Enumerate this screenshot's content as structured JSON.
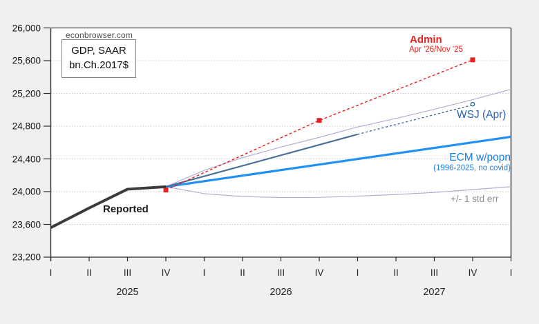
{
  "site": "econbrowser.com",
  "legend_box": {
    "line1": "GDP, SAAR",
    "line2": "bn.Ch.2017$"
  },
  "annotations": {
    "admin_label": "Admin",
    "admin_sub": "Apr '26/Nov '25",
    "wsj_label": "WSJ (Apr)",
    "ecm_label": "ECM w/popn",
    "ecm_sub": "(1996-2025, no covid)",
    "stderr_label": "+/- 1 std err",
    "reported_label": "Reported"
  },
  "colors": {
    "background": "#f0f0f1",
    "plot_background": "#ffffff",
    "frame": "#4a4a4a",
    "axis": "#2b2b2b",
    "gridline": "#c9c9c9",
    "reported": "#3b3b3b",
    "admin": "#e8201e",
    "wsj_solid": "#4a7199",
    "wsj_dashed": "#2e62a0",
    "ecm": "#2190f5",
    "stderr_band": "#b1aed6"
  },
  "chart_data": {
    "type": "line",
    "title": "GDP, SAAR bn.Ch.2017$",
    "xlabel": "",
    "ylabel": "",
    "ylim": [
      23200,
      26000
    ],
    "grid": "horizontal-dotted",
    "x_unit": "quarter index, 2025Q1 = 0 through 2028Q1 = 12",
    "y_ticks": [
      23200,
      23600,
      24000,
      24400,
      24800,
      25200,
      25600,
      26000
    ],
    "y_tick_labels": [
      "23,200",
      "23,600",
      "24,000",
      "24,400",
      "24,800",
      "25,200",
      "25,600",
      "26,000"
    ],
    "x_quarter_labels": [
      "I",
      "II",
      "III",
      "IV",
      "I",
      "II",
      "III",
      "IV",
      "I",
      "II",
      "III",
      "IV",
      "I"
    ],
    "years": [
      {
        "label": "2025",
        "q": 2
      },
      {
        "label": "2026",
        "q": 6
      },
      {
        "label": "2027",
        "q": 10
      }
    ],
    "series": [
      {
        "name": "+1 std err band",
        "q": [
          3,
          4,
          5,
          6,
          7,
          8,
          9,
          10,
          11,
          12
        ],
        "values": [
          24060,
          24260,
          24415,
          24545,
          24663,
          24790,
          24894,
          25006,
          25124,
          25250
        ],
        "color": "#b1aed6",
        "width": 1.2,
        "dash": null,
        "marker": null
      },
      {
        "name": "-1 std err band",
        "q": [
          3,
          4,
          5,
          6,
          7,
          8,
          9,
          10,
          11,
          12
        ],
        "values": [
          24060,
          23975,
          23940,
          23928,
          23930,
          23945,
          23965,
          23990,
          24025,
          24060
        ],
        "color": "#b1aed6",
        "width": 1.2,
        "dash": null,
        "marker": null
      },
      {
        "name": "ECM w/popn (1996-2025, no covid)",
        "q": [
          3,
          12
        ],
        "values": [
          24060,
          24670
        ],
        "color": "#2190f5",
        "width": 3.2,
        "dash": null,
        "marker": null
      },
      {
        "name": "WSJ (Apr) quarterly",
        "q": [
          3,
          8
        ],
        "values": [
          24060,
          24700
        ],
        "color": "#4a7199",
        "width": 2.2,
        "dash": null,
        "marker": null
      },
      {
        "name": "WSJ (Apr) extension",
        "q": [
          8,
          11
        ],
        "values": [
          24700,
          25060
        ],
        "color": "#2e62a0",
        "width": 1.3,
        "dash": "3 3",
        "marker": null,
        "end_marker": "circle-open"
      },
      {
        "name": "Admin Apr '26/Nov '25",
        "q": [
          3,
          7,
          11
        ],
        "values": [
          24020,
          24870,
          25610
        ],
        "color": "#e8201e",
        "width": 1.4,
        "dash": "4 3",
        "marker": "square"
      },
      {
        "name": "Reported",
        "q": [
          0,
          1,
          2,
          3
        ],
        "values": [
          23560,
          23800,
          24030,
          24060
        ],
        "color": "#3b3b3b",
        "width": 4,
        "dash": null,
        "marker": null
      }
    ]
  }
}
